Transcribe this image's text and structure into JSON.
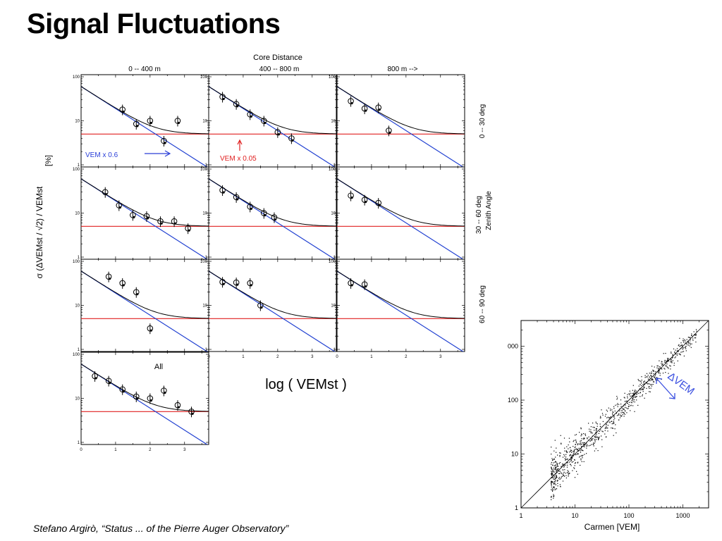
{
  "slide": {
    "title": "Signal Fluctuations",
    "citation": "Stefano Argirò, “Status ... of the Pierre Auger Observatory”"
  },
  "grid_labels": {
    "column_group_title": "Core Distance",
    "columns": [
      "0 -- 400 m",
      "400 -- 800 m",
      "800 m -->"
    ],
    "row_group_title": "Zenith Angle",
    "rows": [
      "0 -- 30 deg",
      "30 -- 60 deg",
      "60 -- 90 deg"
    ],
    "y_axis_label": "σ (ΔVEMst / √2) / VEMst",
    "y_axis_unit": "[%]",
    "x_axis_label": "log ( VEMst )",
    "y_ticks": [
      "1",
      "10",
      "100"
    ],
    "x_ticks": [
      "0",
      "1",
      "2",
      "3"
    ],
    "all_label": "All",
    "annotation_blue": "VEM x 0.6",
    "annotation_red": "VEM x 0.05"
  },
  "colors": {
    "poisson_line": "#1f3fd1",
    "constant_line": "#e02020",
    "combined_curve": "#000000",
    "annotation_blue": "#2a3fd8",
    "annotation_red": "#e02020",
    "scatter_arrow": "#3a4fe0"
  },
  "scatter": {
    "xlabel": "Carmen   [VEM]",
    "arrow_label": "ΔVEM",
    "x_ticks": [
      "1",
      "10",
      "100",
      "1000"
    ],
    "y_ticks": [
      "1",
      "10",
      "100",
      "000"
    ]
  },
  "chart_data": [
    {
      "type": "scatter",
      "panel": "0 -- 400 m / 0 -- 30 deg",
      "xlim": [
        0,
        3.7
      ],
      "ylim": [
        1,
        100
      ],
      "yscale": "log",
      "x": [
        1.2,
        1.6,
        2.0,
        2.4,
        2.8
      ],
      "y": [
        18,
        8.5,
        10,
        3.5,
        10
      ],
      "constant_level": 5
    },
    {
      "type": "scatter",
      "panel": "400 -- 800 m / 0 -- 30 deg",
      "xlim": [
        0,
        3.7
      ],
      "ylim": [
        1,
        100
      ],
      "yscale": "log",
      "x": [
        0.4,
        0.8,
        1.2,
        1.6,
        2.0,
        2.4
      ],
      "y": [
        35,
        24,
        14,
        10,
        5.5,
        4
      ],
      "constant_level": 5
    },
    {
      "type": "scatter",
      "panel": "800 m --> / 0 -- 30 deg",
      "xlim": [
        0,
        3.7
      ],
      "ylim": [
        1,
        100
      ],
      "yscale": "log",
      "x": [
        0.4,
        0.8,
        1.2,
        1.5
      ],
      "y": [
        28,
        19,
        20,
        6
      ],
      "constant_level": 5
    },
    {
      "type": "scatter",
      "panel": "0 -- 400 m / 30 -- 60 deg",
      "xlim": [
        0,
        3.7
      ],
      "ylim": [
        1,
        100
      ],
      "yscale": "log",
      "x": [
        0.7,
        1.1,
        1.5,
        1.9,
        2.3,
        2.7,
        3.1
      ],
      "y": [
        30,
        15,
        9,
        8.5,
        6.5,
        6.5,
        4.5
      ],
      "constant_level": 5
    },
    {
      "type": "scatter",
      "panel": "400 -- 800 m / 30 -- 60 deg",
      "xlim": [
        0,
        3.7
      ],
      "ylim": [
        1,
        100
      ],
      "yscale": "log",
      "x": [
        0.4,
        0.8,
        1.2,
        1.6,
        1.9
      ],
      "y": [
        33,
        23,
        14,
        10,
        8
      ],
      "constant_level": 5
    },
    {
      "type": "scatter",
      "panel": "800 m --> / 30 -- 60 deg",
      "xlim": [
        0,
        3.7
      ],
      "ylim": [
        1,
        100
      ],
      "yscale": "log",
      "x": [
        0.4,
        0.8,
        1.2
      ],
      "y": [
        25,
        20,
        17
      ],
      "constant_level": 5
    },
    {
      "type": "scatter",
      "panel": "0 -- 400 m / 60 -- 90 deg",
      "xlim": [
        0,
        3.7
      ],
      "ylim": [
        1,
        100
      ],
      "yscale": "log",
      "x": [
        0.8,
        1.2,
        1.6,
        2.0
      ],
      "y": [
        45,
        32,
        20,
        3
      ],
      "constant_level": 5
    },
    {
      "type": "scatter",
      "panel": "400 -- 800 m / 60 -- 90 deg",
      "xlim": [
        0,
        3.7
      ],
      "ylim": [
        1,
        100
      ],
      "yscale": "log",
      "x": [
        0.4,
        0.8,
        1.2,
        1.5
      ],
      "y": [
        34,
        33,
        32,
        10
      ],
      "constant_level": 5
    },
    {
      "type": "scatter",
      "panel": "800 m --> / 60 -- 90 deg",
      "xlim": [
        0,
        3.7
      ],
      "ylim": [
        1,
        100
      ],
      "yscale": "log",
      "x": [
        0.4,
        0.8
      ],
      "y": [
        32,
        30
      ],
      "constant_level": 5
    },
    {
      "type": "scatter",
      "panel": "All",
      "xlim": [
        0,
        3.7
      ],
      "ylim": [
        1,
        100
      ],
      "yscale": "log",
      "x": [
        0.4,
        0.8,
        1.2,
        1.6,
        2.0,
        2.4,
        2.8,
        3.2
      ],
      "y": [
        32,
        25,
        16,
        11,
        10,
        15,
        7,
        5
      ],
      "constant_level": 5
    },
    {
      "type": "scatter",
      "panel": "Carmen scatter",
      "xscale": "log",
      "yscale": "log",
      "xlim": [
        1,
        3000
      ],
      "ylim": [
        1,
        3000
      ],
      "xlabel": "Carmen   [VEM]",
      "diagonal": true,
      "points": "dense cloud along the diagonal, ~4-1500 VEM",
      "point_count_approx": 900
    }
  ]
}
